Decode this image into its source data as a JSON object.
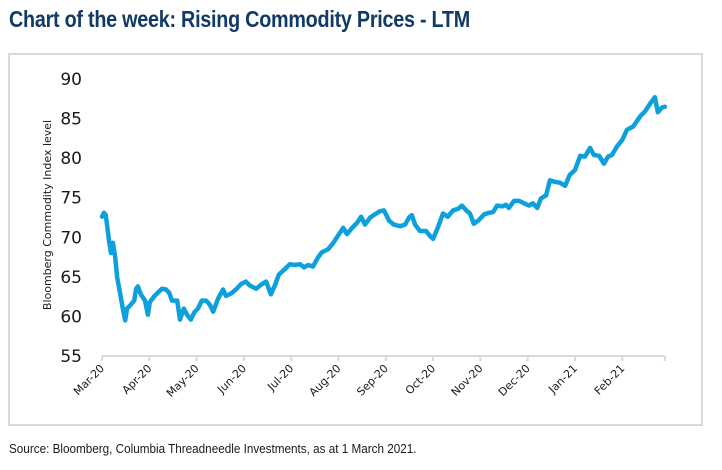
{
  "header": {
    "title": "Chart of the week: Rising Commodity Prices - LTM"
  },
  "footer": {
    "source": "Source: Bloomberg, Columbia Threadneedle Investments, as at 1 March 2021."
  },
  "colors": {
    "title": "#123a66",
    "line": "#0ea0dc",
    "axis": "#d9d9d9"
  },
  "chart_data": {
    "type": "line",
    "title": "Chart of the week: Rising Commodity Prices - LTM",
    "xlabel": "",
    "ylabel": "Bloomberg Commodity Index level",
    "ylim": [
      55,
      90
    ],
    "yticks": [
      55,
      60,
      65,
      70,
      75,
      80,
      85,
      90
    ],
    "xtick_labels": [
      "Mar-20",
      "Apr-20",
      "May-20",
      "Jun-20",
      "Jul-20",
      "Aug-20",
      "Sep-20",
      "Oct-20",
      "Nov-20",
      "Dec-20",
      "Jan-21",
      "Feb-21"
    ],
    "xlim_months": [
      0,
      11.9
    ],
    "grid": false,
    "legend": "none",
    "series": [
      {
        "name": "Bloomberg Commodity Index",
        "x_unit": "months since Mar-20",
        "points": [
          [
            0.0,
            72.6
          ],
          [
            0.04,
            73.1
          ],
          [
            0.08,
            72.8
          ],
          [
            0.15,
            69.5
          ],
          [
            0.19,
            68.0
          ],
          [
            0.23,
            69.3
          ],
          [
            0.28,
            67.5
          ],
          [
            0.32,
            65.0
          ],
          [
            0.38,
            63.0
          ],
          [
            0.44,
            61.0
          ],
          [
            0.49,
            59.5
          ],
          [
            0.53,
            61.0
          ],
          [
            0.61,
            61.5
          ],
          [
            0.68,
            62.0
          ],
          [
            0.72,
            63.5
          ],
          [
            0.76,
            63.8
          ],
          [
            0.82,
            62.8
          ],
          [
            0.91,
            62.0
          ],
          [
            0.97,
            60.2
          ],
          [
            1.01,
            61.8
          ],
          [
            1.1,
            62.5
          ],
          [
            1.18,
            63.0
          ],
          [
            1.27,
            63.5
          ],
          [
            1.35,
            63.4
          ],
          [
            1.42,
            63.0
          ],
          [
            1.48,
            62.0
          ],
          [
            1.59,
            62.0
          ],
          [
            1.65,
            59.6
          ],
          [
            1.73,
            61.0
          ],
          [
            1.8,
            60.2
          ],
          [
            1.88,
            59.6
          ],
          [
            1.95,
            60.5
          ],
          [
            2.03,
            61.0
          ],
          [
            2.11,
            62.0
          ],
          [
            2.2,
            62.0
          ],
          [
            2.28,
            61.5
          ],
          [
            2.35,
            60.6
          ],
          [
            2.45,
            62.2
          ],
          [
            2.56,
            63.4
          ],
          [
            2.62,
            62.6
          ],
          [
            2.73,
            62.9
          ],
          [
            2.83,
            63.4
          ],
          [
            2.94,
            64.1
          ],
          [
            3.04,
            64.4
          ],
          [
            3.13,
            63.9
          ],
          [
            3.26,
            63.5
          ],
          [
            3.36,
            64.0
          ],
          [
            3.47,
            64.4
          ],
          [
            3.57,
            62.8
          ],
          [
            3.66,
            64.0
          ],
          [
            3.74,
            65.3
          ],
          [
            3.87,
            66.0
          ],
          [
            3.97,
            66.6
          ],
          [
            4.08,
            66.5
          ],
          [
            4.19,
            66.6
          ],
          [
            4.27,
            66.2
          ],
          [
            4.36,
            66.5
          ],
          [
            4.46,
            66.3
          ],
          [
            4.57,
            67.5
          ],
          [
            4.65,
            68.1
          ],
          [
            4.78,
            68.5
          ],
          [
            4.88,
            69.2
          ],
          [
            4.99,
            70.2
          ],
          [
            5.1,
            71.2
          ],
          [
            5.18,
            70.4
          ],
          [
            5.29,
            71.2
          ],
          [
            5.39,
            71.8
          ],
          [
            5.48,
            72.6
          ],
          [
            5.56,
            71.6
          ],
          [
            5.67,
            72.5
          ],
          [
            5.77,
            72.9
          ],
          [
            5.88,
            73.3
          ],
          [
            5.96,
            73.4
          ],
          [
            6.07,
            72.1
          ],
          [
            6.17,
            71.6
          ],
          [
            6.3,
            71.4
          ],
          [
            6.41,
            71.6
          ],
          [
            6.49,
            72.5
          ],
          [
            6.55,
            72.8
          ],
          [
            6.62,
            71.6
          ],
          [
            6.72,
            70.8
          ],
          [
            6.85,
            70.8
          ],
          [
            6.93,
            70.2
          ],
          [
            7.0,
            69.8
          ],
          [
            7.1,
            71.2
          ],
          [
            7.21,
            73.0
          ],
          [
            7.31,
            72.6
          ],
          [
            7.42,
            73.4
          ],
          [
            7.53,
            73.6
          ],
          [
            7.61,
            74.0
          ],
          [
            7.7,
            73.4
          ],
          [
            7.78,
            73.0
          ],
          [
            7.86,
            71.7
          ],
          [
            7.97,
            72.2
          ],
          [
            8.08,
            72.9
          ],
          [
            8.18,
            73.1
          ],
          [
            8.27,
            73.2
          ],
          [
            8.35,
            74.0
          ],
          [
            8.46,
            73.9
          ],
          [
            8.54,
            74.1
          ],
          [
            8.6,
            73.7
          ],
          [
            8.71,
            74.6
          ],
          [
            8.82,
            74.6
          ],
          [
            8.92,
            74.3
          ],
          [
            9.03,
            74.0
          ],
          [
            9.11,
            74.3
          ],
          [
            9.2,
            73.7
          ],
          [
            9.28,
            74.9
          ],
          [
            9.39,
            75.3
          ],
          [
            9.47,
            77.2
          ],
          [
            9.58,
            77.0
          ],
          [
            9.68,
            76.9
          ],
          [
            9.79,
            76.5
          ],
          [
            9.89,
            77.9
          ],
          [
            10.0,
            78.5
          ],
          [
            10.11,
            80.3
          ],
          [
            10.21,
            80.2
          ],
          [
            10.32,
            81.3
          ],
          [
            10.4,
            80.4
          ],
          [
            10.51,
            80.3
          ],
          [
            10.61,
            79.3
          ],
          [
            10.7,
            80.2
          ],
          [
            10.78,
            80.4
          ],
          [
            10.89,
            81.5
          ],
          [
            11.0,
            82.3
          ],
          [
            11.1,
            83.6
          ],
          [
            11.23,
            84.0
          ],
          [
            11.38,
            85.3
          ],
          [
            11.48,
            85.9
          ],
          [
            11.59,
            86.9
          ],
          [
            11.69,
            87.7
          ],
          [
            11.75,
            85.8
          ],
          [
            11.84,
            86.4
          ],
          [
            11.9,
            86.5
          ]
        ]
      }
    ]
  }
}
